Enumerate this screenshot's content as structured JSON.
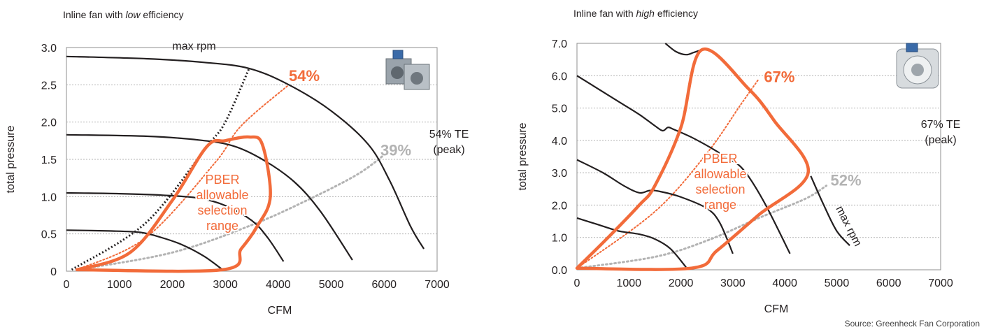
{
  "source_note": "Source: Greenheck Fan Corporation",
  "colors": {
    "orange": "#f26b3a",
    "gray": "#b3b3b3",
    "curve": "#231f20",
    "grid": "#b3b3b3",
    "frame": "#8f8f8f"
  },
  "icons": [
    "centrifugal-inline-fan-icon",
    "mixed-flow-inline-fan-icon"
  ],
  "chart_data": [
    {
      "type": "line",
      "title_prefix": "Inline fan with ",
      "title_emph": "low",
      "title_suffix": " efficiency",
      "xlabel": "CFM",
      "ylabel": "total pressure",
      "xlim": [
        0,
        7000
      ],
      "ylim": [
        0,
        3.0
      ],
      "xticks": [
        "0",
        "1000",
        "2000",
        "3000",
        "4000",
        "5000",
        "6000",
        "7000"
      ],
      "xtick_values": [
        0,
        1000,
        2000,
        3000,
        4000,
        5000,
        6000,
        7000
      ],
      "yticks": [
        "0",
        "0.5",
        "1.0",
        "1.5",
        "2.0",
        "2.5",
        "3.0"
      ],
      "ytick_values": [
        0,
        0.5,
        1.0,
        1.5,
        2.0,
        2.5,
        3.0
      ],
      "grid": "horizontal-dotted",
      "series": [
        {
          "values": [
            [
              0,
              2.88
            ],
            [
              1500,
              2.85
            ],
            [
              2600,
              2.8
            ],
            [
              3450,
              2.72
            ],
            [
              4200,
              2.5
            ],
            [
              5000,
              2.15
            ],
            [
              5700,
              1.7
            ],
            [
              6100,
              1.22
            ],
            [
              6500,
              0.6
            ],
            [
              6750,
              0.3
            ]
          ]
        },
        {
          "values": [
            [
              0,
              1.83
            ],
            [
              1500,
              1.81
            ],
            [
              2500,
              1.76
            ],
            [
              3150,
              1.68
            ],
            [
              3700,
              1.5
            ],
            [
              4300,
              1.2
            ],
            [
              4800,
              0.8
            ],
            [
              5400,
              0.15
            ]
          ]
        },
        {
          "values": [
            [
              0,
              1.05
            ],
            [
              1000,
              1.04
            ],
            [
              1800,
              1.02
            ],
            [
              2500,
              0.98
            ],
            [
              3000,
              0.88
            ],
            [
              3500,
              0.68
            ],
            [
              3800,
              0.45
            ],
            [
              4100,
              0.13
            ]
          ]
        },
        {
          "values": [
            [
              0,
              0.55
            ],
            [
              800,
              0.54
            ],
            [
              1400,
              0.52
            ],
            [
              1800,
              0.45
            ],
            [
              2200,
              0.35
            ],
            [
              2600,
              0.2
            ],
            [
              2950,
              0.02
            ]
          ]
        }
      ],
      "max_rpm_line": {
        "values": [
          [
            100,
            0.02
          ],
          [
            1500,
            0.65
          ],
          [
            2650,
            1.67
          ],
          [
            3000,
            2.0
          ],
          [
            3450,
            2.72
          ]
        ]
      },
      "efficiency_lines": [
        {
          "label": "54%",
          "color": "orange",
          "values": [
            [
              200,
              0.02
            ],
            [
              1500,
              0.45
            ],
            [
              2800,
              1.45
            ],
            [
              3300,
              1.95
            ],
            [
              4200,
              2.5
            ]
          ]
        },
        {
          "label": "39%",
          "color": "gray",
          "values": [
            [
              200,
              0.02
            ],
            [
              2000,
              0.25
            ],
            [
              3500,
              0.62
            ],
            [
              4600,
              0.97
            ],
            [
              5500,
              1.3
            ],
            [
              6000,
              1.56
            ]
          ]
        }
      ],
      "selection_range": {
        "label": "PBER allowable selection range",
        "values": [
          [
            200,
            0.02
          ],
          [
            1200,
            0.25
          ],
          [
            2000,
            0.95
          ],
          [
            2650,
            1.67
          ],
          [
            3000,
            1.75
          ],
          [
            3450,
            1.8
          ],
          [
            3700,
            1.7
          ],
          [
            3850,
            1.0
          ],
          [
            3600,
            0.6
          ],
          [
            3300,
            0.3
          ],
          [
            2950,
            0.02
          ],
          [
            200,
            0.02
          ]
        ]
      },
      "annotations": [
        {
          "text": "max rpm",
          "x": 2000,
          "y": 2.97,
          "color": "curve",
          "size": 16
        },
        {
          "text": "54%",
          "x": 4200,
          "y": 2.55,
          "color": "orange",
          "size": 22,
          "bold": true
        },
        {
          "text": "39%",
          "x": 5930,
          "y": 1.55,
          "color": "gray",
          "size": 22,
          "bold": true
        }
      ],
      "range_label": [
        "PBER",
        "allowable",
        "selection",
        "range"
      ],
      "te_label": [
        "54% TE",
        "(peak)"
      ]
    },
    {
      "type": "line",
      "title_prefix": "Inline fan with ",
      "title_emph": "high",
      "title_suffix": " efficiency",
      "xlabel": "CFM",
      "ylabel": "total pressure",
      "xlim": [
        0,
        7000
      ],
      "ylim": [
        0,
        7.0
      ],
      "xticks": [
        "0",
        "1000",
        "2000",
        "3000",
        "4000",
        "5000",
        "6000",
        "7000"
      ],
      "xtick_values": [
        0,
        1000,
        2000,
        3000,
        4000,
        5000,
        6000,
        7000
      ],
      "yticks": [
        "0.0",
        "1.0",
        "2.0",
        "3.0",
        "4.0",
        "5.0",
        "6.0",
        "7.0"
      ],
      "ytick_values": [
        0,
        1,
        2,
        3,
        4,
        5,
        6,
        7
      ],
      "grid": "horizontal-dotted",
      "series": [
        {
          "values": [
            [
              0,
              6.0
            ],
            [
              400,
              5.6
            ],
            [
              800,
              5.2
            ],
            [
              1200,
              4.8
            ],
            [
              1500,
              4.45
            ],
            [
              1650,
              4.3
            ],
            [
              1750,
              4.4
            ],
            [
              1850,
              4.35
            ],
            [
              2200,
              4.1
            ],
            [
              2600,
              3.75
            ],
            [
              2900,
              3.45
            ],
            [
              3200,
              3.1
            ],
            [
              3600,
              2.1
            ],
            [
              4100,
              0.5
            ]
          ]
        },
        {
          "values": [
            [
              1700,
              7.0
            ],
            [
              1900,
              6.75
            ],
            [
              2100,
              6.65
            ],
            [
              2250,
              6.72
            ],
            [
              2400,
              6.8
            ]
          ]
        },
        {
          "values": [
            [
              0,
              3.4
            ],
            [
              500,
              3.0
            ],
            [
              900,
              2.6
            ],
            [
              1200,
              2.38
            ],
            [
              1400,
              2.45
            ],
            [
              1600,
              2.42
            ],
            [
              2000,
              2.25
            ],
            [
              2500,
              1.9
            ],
            [
              2750,
              1.45
            ],
            [
              3000,
              0.5
            ]
          ]
        },
        {
          "values": [
            [
              0,
              1.6
            ],
            [
              400,
              1.4
            ],
            [
              800,
              1.2
            ],
            [
              1200,
              1.1
            ],
            [
              1500,
              0.95
            ],
            [
              1800,
              0.65
            ],
            [
              2100,
              0.08
            ]
          ]
        },
        {
          "values": [
            [
              4500,
              2.9
            ],
            [
              4750,
              2.0
            ],
            [
              5000,
              1.2
            ],
            [
              5250,
              0.75
            ]
          ]
        }
      ],
      "efficiency_lines": [
        {
          "label": "67%",
          "color": "orange",
          "values": [
            [
              0,
              0.05
            ],
            [
              1500,
              1.8
            ],
            [
              2500,
              3.6
            ],
            [
              3150,
              5.1
            ],
            [
              3500,
              5.9
            ]
          ]
        },
        {
          "label": "52%",
          "color": "gray",
          "values": [
            [
              0,
              0.05
            ],
            [
              1500,
              0.4
            ],
            [
              2500,
              0.9
            ],
            [
              3500,
              1.6
            ],
            [
              4400,
              2.2
            ],
            [
              4800,
              2.6
            ]
          ]
        }
      ],
      "selection_range": {
        "label": "PBER allowable selection range",
        "values": [
          [
            0,
            0.05
          ],
          [
            600,
            1.0
          ],
          [
            1200,
            2.0
          ],
          [
            1500,
            2.6
          ],
          [
            2000,
            4.4
          ],
          [
            2400,
            6.8
          ],
          [
            3300,
            5.6
          ],
          [
            3800,
            4.6
          ],
          [
            4450,
            3.0
          ],
          [
            3500,
            1.7
          ],
          [
            2700,
            0.6
          ],
          [
            2200,
            0.05
          ],
          [
            0,
            0.05
          ]
        ]
      },
      "annotations": [
        {
          "text": "67%",
          "x": 3600,
          "y": 5.8,
          "color": "orange",
          "size": 22,
          "bold": true
        },
        {
          "text": "52%",
          "x": 4880,
          "y": 2.6,
          "color": "gray",
          "size": 22,
          "bold": true
        }
      ],
      "rotated_label": {
        "text": "max rpm",
        "x": 4980,
        "y": 1.9,
        "angle": 63
      },
      "range_label": [
        "PBER",
        "allowable",
        "selection",
        "range"
      ],
      "te_label": [
        "67% TE",
        "(peak)"
      ]
    }
  ]
}
